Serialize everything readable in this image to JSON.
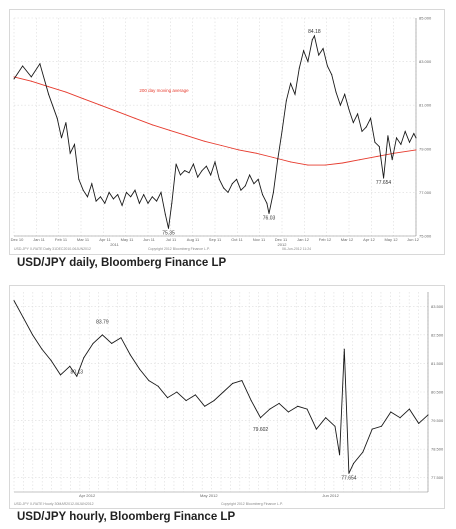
{
  "captions": {
    "daily": "USD/JPY daily, Bloomberg Finance LP",
    "hourly": "USD/JPY hourly, Bloomberg Finance LP"
  },
  "colors": {
    "price": "#1a1a1a",
    "moving_average": "#e63b2e",
    "grid": "#dcdcdc"
  },
  "chart_data": [
    {
      "type": "line",
      "title": "USD/JPY daily, Bloomberg Finance LP",
      "ylim": [
        75,
        85
      ],
      "yticks": [
        75,
        77,
        79,
        81,
        83,
        85
      ],
      "ytick_labels": [
        "75.000",
        "77.000",
        "79.000",
        "81.000",
        "83.000",
        "85.000"
      ],
      "year_labels": [
        "2011",
        "2012"
      ],
      "xtick_labels": [
        "Dec 10",
        "Jan 11",
        "Feb 11",
        "Mar 11",
        "Apr 11",
        "May 11",
        "Jun 11",
        "Jul 11",
        "Aug 11",
        "Sep 11",
        "Oct 11",
        "Nov 11",
        "Dec 11",
        "Jan 12",
        "Feb 12",
        "Mar 12",
        "Apr 12",
        "May 12",
        "Jun 12"
      ],
      "grid": true,
      "footer": [
        "USD-JPY X-RATE  Daily 31DEC2010-06JUN2012",
        "Copyright 2012 Bloomberg Finance L.P.",
        "06-Jun-2012 11:24"
      ],
      "annotations": [
        {
          "text": "200 day moving average",
          "x": 58,
          "y": 81.6
        },
        {
          "text": "75.35",
          "x": 71.5,
          "y": 75.35
        },
        {
          "text": "76.03",
          "x": 118,
          "y": 76.03
        },
        {
          "text": "84.18",
          "x": 139,
          "y": 84.18
        },
        {
          "text": "77.654",
          "x": 171,
          "y": 77.654
        }
      ],
      "series": [
        {
          "name": "200 day moving average",
          "x": [
            0,
            8,
            16,
            24,
            32,
            40,
            48,
            56,
            64,
            72,
            80,
            88,
            96,
            104,
            112,
            120,
            128,
            136,
            144,
            152,
            160,
            168,
            176,
            186
          ],
          "values": [
            82.3,
            82.1,
            81.85,
            81.6,
            81.3,
            81.0,
            80.7,
            80.4,
            80.1,
            79.85,
            79.6,
            79.35,
            79.15,
            78.95,
            78.8,
            78.6,
            78.4,
            78.25,
            78.25,
            78.35,
            78.5,
            78.65,
            78.8,
            78.95
          ]
        },
        {
          "name": "",
          "x": [
            0,
            4,
            8,
            12,
            16,
            20,
            22,
            24,
            26,
            28,
            30,
            32,
            34,
            36,
            38,
            40,
            42,
            44,
            46,
            48,
            50,
            52,
            54,
            56,
            58,
            60,
            62,
            64,
            66,
            68,
            70,
            71.5,
            73,
            75,
            77,
            79,
            81,
            83,
            85,
            87,
            89,
            91,
            93,
            95,
            97,
            99,
            101,
            103,
            105,
            107,
            109,
            111,
            113,
            115,
            117,
            118,
            120,
            122,
            124,
            126,
            128,
            130,
            132,
            134,
            136,
            138,
            139,
            141,
            143,
            145,
            147,
            149,
            151,
            153,
            155,
            157,
            159,
            161,
            163,
            165,
            167,
            169,
            171,
            173,
            175,
            177,
            179,
            181,
            183,
            185,
            186
          ],
          "values": [
            82.2,
            82.8,
            82.3,
            82.9,
            81.5,
            80.4,
            79.5,
            80.2,
            78.8,
            79.2,
            77.6,
            77.1,
            76.8,
            77.4,
            76.6,
            76.8,
            76.5,
            77.0,
            76.7,
            76.9,
            76.4,
            77.0,
            76.8,
            77.1,
            76.5,
            76.9,
            76.5,
            76.8,
            76.6,
            77.0,
            76.0,
            75.35,
            76.5,
            78.3,
            77.8,
            78.0,
            77.9,
            78.3,
            77.7,
            78.0,
            78.2,
            77.8,
            78.4,
            77.6,
            77.2,
            77.0,
            77.4,
            77.6,
            77.1,
            77.3,
            77.8,
            77.4,
            77.6,
            76.9,
            76.5,
            76.03,
            77.0,
            78.5,
            79.8,
            81.2,
            82.0,
            81.5,
            82.7,
            83.5,
            83.0,
            84.0,
            84.18,
            83.3,
            83.6,
            82.8,
            82.4,
            81.6,
            81.0,
            81.5,
            80.8,
            80.2,
            80.6,
            79.8,
            80.0,
            80.4,
            79.3,
            79.1,
            77.654,
            79.6,
            78.5,
            79.5,
            79.2,
            79.8,
            79.3,
            79.7,
            79.5
          ]
        }
      ]
    },
    {
      "type": "line",
      "title": "USD/JPY hourly, Bloomberg Finance LP",
      "ylim": [
        77,
        84
      ],
      "yticks": [
        77.5,
        78.5,
        79.5,
        80.5,
        81.5,
        82.5,
        83.5
      ],
      "ytick_labels": [
        "77.500",
        "78.500",
        "79.500",
        "80.500",
        "81.500",
        "82.500",
        "83.500"
      ],
      "year_labels": [
        "Apr 2012",
        "May 2012",
        "Jun 2012"
      ],
      "grid": true,
      "footer": [
        "USD-JPY X-RATE  Hourly 30MAR2012-06JUN2012",
        "Copyright 2012 Bloomberg Finance L.P."
      ],
      "annotations": [
        {
          "text": "83.79",
          "x": 19,
          "y": 82.8
        },
        {
          "text": "80.13",
          "x": 13.5,
          "y": 81.05
        },
        {
          "text": "79.602",
          "x": 53,
          "y": 79.35
        },
        {
          "text": "77.654",
          "x": 72,
          "y": 77.654
        }
      ],
      "series": [
        {
          "name": "",
          "x": [
            0,
            2,
            4,
            6,
            8,
            10,
            12,
            13.5,
            15,
            17,
            19,
            21,
            23,
            25,
            27,
            29,
            31,
            33,
            35,
            37,
            39,
            41,
            43,
            45,
            47,
            49,
            51,
            53,
            55,
            57,
            59,
            61,
            63,
            65,
            67,
            69,
            70,
            71,
            72,
            73,
            75,
            77,
            79,
            81,
            83,
            85,
            87,
            89
          ],
          "values": [
            83.7,
            83.1,
            82.5,
            82.0,
            81.6,
            81.1,
            81.4,
            81.05,
            81.7,
            82.2,
            82.5,
            82.2,
            82.4,
            81.8,
            81.3,
            80.9,
            80.7,
            80.3,
            80.5,
            80.2,
            80.4,
            80.0,
            80.2,
            80.5,
            80.8,
            80.9,
            80.2,
            79.6,
            79.9,
            80.1,
            79.8,
            80.0,
            79.9,
            79.2,
            79.6,
            79.3,
            78.3,
            82.0,
            77.654,
            78.0,
            78.4,
            79.2,
            79.3,
            79.8,
            79.6,
            79.9,
            79.4,
            79.7
          ]
        }
      ]
    }
  ]
}
